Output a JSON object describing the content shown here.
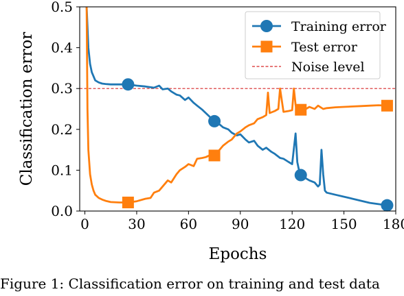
{
  "caption": "Figure 1: Classification error on training and test data",
  "chart_data": {
    "type": "line",
    "xlabel": "Epochs",
    "ylabel": "Classification error",
    "xlim": [
      -3,
      180
    ],
    "ylim": [
      0.0,
      0.5
    ],
    "xticks": [
      0,
      30,
      60,
      90,
      120,
      150,
      180
    ],
    "yticks": [
      0.0,
      0.1,
      0.2,
      0.3,
      0.4,
      0.5
    ],
    "grid": false,
    "legend_position": "top-right",
    "noise_level": 0.3,
    "series": [
      {
        "name": "Training error",
        "color": "#1f77b4",
        "marker": "circle",
        "x": [
          1,
          2,
          3,
          4,
          5,
          6,
          8,
          10,
          12,
          15,
          18,
          20,
          25,
          30,
          35,
          40,
          43,
          45,
          48,
          50,
          53,
          55,
          58,
          60,
          63,
          65,
          68,
          70,
          73,
          75,
          78,
          80,
          83,
          85,
          88,
          90,
          93,
          95,
          98,
          100,
          103,
          105,
          108,
          110,
          113,
          115,
          118,
          120,
          122,
          123,
          124,
          125,
          128,
          130,
          133,
          135,
          136,
          137,
          138,
          139,
          140,
          145,
          150,
          155,
          160,
          165,
          170,
          175,
          177
        ],
        "y": [
          0.5,
          0.4,
          0.36,
          0.34,
          0.33,
          0.32,
          0.315,
          0.312,
          0.311,
          0.31,
          0.31,
          0.31,
          0.31,
          0.307,
          0.305,
          0.302,
          0.307,
          0.298,
          0.3,
          0.293,
          0.285,
          0.283,
          0.272,
          0.278,
          0.265,
          0.258,
          0.248,
          0.24,
          0.228,
          0.22,
          0.212,
          0.205,
          0.2,
          0.192,
          0.185,
          0.188,
          0.175,
          0.168,
          0.172,
          0.16,
          0.15,
          0.155,
          0.145,
          0.14,
          0.13,
          0.128,
          0.12,
          0.115,
          0.19,
          0.12,
          0.1,
          0.088,
          0.08,
          0.075,
          0.07,
          0.06,
          0.065,
          0.15,
          0.09,
          0.05,
          0.045,
          0.04,
          0.035,
          0.03,
          0.025,
          0.02,
          0.017,
          0.014,
          0.013
        ],
        "marker_x": [
          25,
          75,
          125,
          175
        ],
        "marker_y": [
          0.31,
          0.22,
          0.088,
          0.014
        ]
      },
      {
        "name": "Test error",
        "color": "#ff7f0e",
        "marker": "square",
        "x": [
          1,
          1.5,
          2,
          3,
          4,
          5,
          6,
          8,
          10,
          12,
          15,
          20,
          25,
          30,
          35,
          38,
          40,
          43,
          45,
          48,
          50,
          53,
          55,
          58,
          60,
          63,
          65,
          68,
          70,
          73,
          75,
          78,
          80,
          83,
          85,
          88,
          90,
          93,
          95,
          98,
          100,
          103,
          105,
          106,
          107,
          110,
          112,
          113,
          115,
          118,
          120,
          121,
          122,
          123,
          125,
          128,
          130,
          133,
          135,
          138,
          140,
          145,
          150,
          155,
          160,
          165,
          170,
          175,
          177
        ],
        "y": [
          0.5,
          0.25,
          0.15,
          0.09,
          0.065,
          0.05,
          0.04,
          0.032,
          0.028,
          0.025,
          0.022,
          0.021,
          0.021,
          0.024,
          0.03,
          0.032,
          0.045,
          0.05,
          0.06,
          0.075,
          0.07,
          0.09,
          0.1,
          0.108,
          0.115,
          0.11,
          0.128,
          0.13,
          0.132,
          0.138,
          0.136,
          0.15,
          0.16,
          0.17,
          0.175,
          0.19,
          0.195,
          0.205,
          0.21,
          0.215,
          0.225,
          0.23,
          0.235,
          0.29,
          0.24,
          0.245,
          0.25,
          0.3,
          0.243,
          0.245,
          0.247,
          0.3,
          0.26,
          0.24,
          0.248,
          0.25,
          0.255,
          0.25,
          0.258,
          0.25,
          0.252,
          0.254,
          0.255,
          0.256,
          0.257,
          0.258,
          0.259,
          0.258,
          0.26
        ],
        "marker_x": [
          25,
          75,
          125,
          175
        ],
        "marker_y": [
          0.021,
          0.136,
          0.248,
          0.258
        ]
      },
      {
        "name": "Noise level",
        "color": "#d62728",
        "style": "dashed",
        "x": [
          -3,
          180
        ],
        "y": [
          0.3,
          0.3
        ]
      }
    ]
  }
}
